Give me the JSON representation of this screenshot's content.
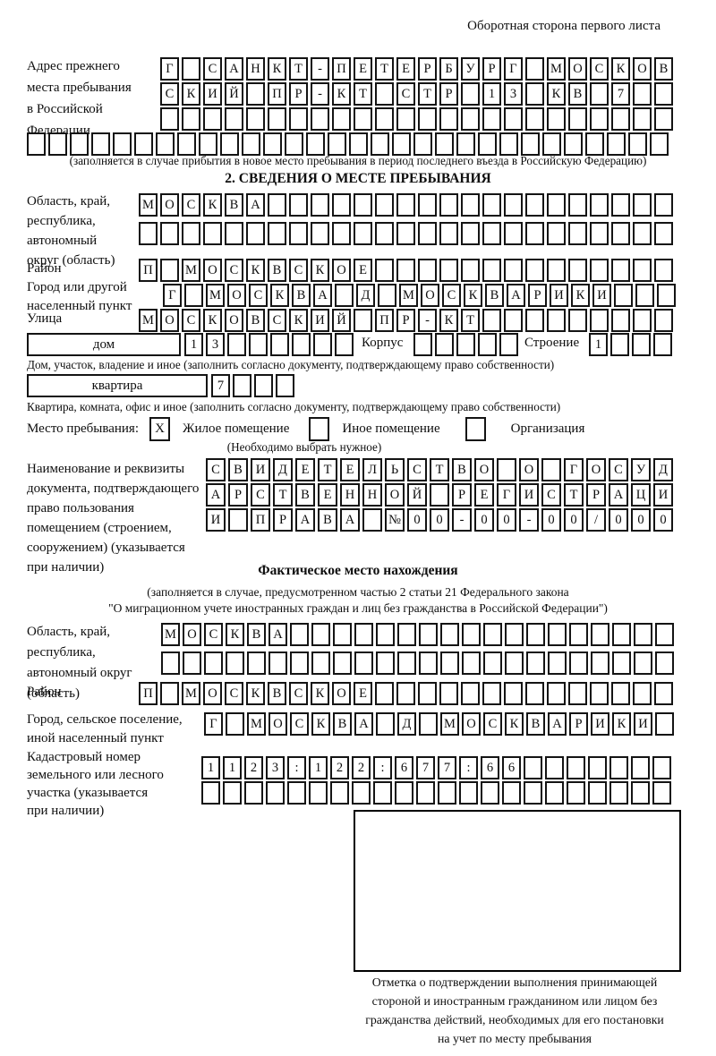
{
  "page": {
    "backside_note": "Оборотная сторона первого листа"
  },
  "prev_address": {
    "label": "Адрес прежнего\nместа пребывания\nв Российской\nФедерации",
    "rows": [
      {
        "chars": "Г САНКТ-ПЕТЕРБУРГ МОСКОВ",
        "boxes": 24
      },
      {
        "chars": "СКИЙ ПР-КТ СТР 13 КВ 7",
        "boxes": 24
      },
      {
        "chars": "",
        "boxes": 24
      },
      {
        "chars": "",
        "boxes": 30
      }
    ],
    "note": "(заполняется в случае прибытия в новое место пребывания в период последнего въезда в Российскую Федерацию)"
  },
  "section2": {
    "title": "2. СВЕДЕНИЯ О МЕСТЕ ПРЕБЫВАНИЯ",
    "oblast": {
      "label": "Область, край,\nреспублика,\nавтономный\nокруг (область)",
      "rows": [
        {
          "chars": "МОСКВА",
          "boxes": 25
        },
        {
          "chars": "",
          "boxes": 25
        }
      ]
    },
    "raion": {
      "label": "Район",
      "row": {
        "chars": "П МОСКВСКОЕ",
        "boxes": 25
      }
    },
    "gorod": {
      "label": "Город или другой\nнаселенный пункт",
      "row": {
        "chars": "Г МОСКВА Д МОСКВАРИКИ",
        "boxes": 24
      }
    },
    "ulitsa": {
      "label": "Улица",
      "row": {
        "chars": "МОСКОВСКИЙ ПР-КТ",
        "boxes": 25
      }
    },
    "dom": {
      "box_label": "дом",
      "row": {
        "chars": "13",
        "boxes": 8
      },
      "korpus_label": "Корпус",
      "korpus_row": {
        "chars": "",
        "boxes": 5
      },
      "stroenie_label": "Строение",
      "stroenie_row": {
        "chars": "1",
        "boxes": 4
      },
      "caption": "Дом, участок, владение и иное (заполнить согласно документу, подтверждающему право собственности)"
    },
    "kvartira": {
      "box_label": "квартира",
      "row": {
        "chars": "7",
        "boxes": 4
      },
      "caption": "Квартира, комната, офис и иное (заполнить согласно документу, подтверждающему право собственности)"
    },
    "mesto": {
      "label": "Место пребывания:",
      "options": [
        {
          "label": "Жилое помещение",
          "mark": "X"
        },
        {
          "label": "Иное помещение",
          "mark": ""
        },
        {
          "label": "Организация",
          "mark": ""
        }
      ],
      "note": "(Необходимо выбрать нужное)"
    },
    "document": {
      "label": "Наименование и реквизиты\nдокумента, подтверждающего\nправо пользования\nпомещением (строением,\nсооружением) (указывается\nпри наличии)",
      "rows": [
        {
          "chars": "СВИДЕТЕЛЬСТВО О ГОСУД",
          "boxes": 21
        },
        {
          "chars": "АРСТВЕННОЙ РЕГИСТРАЦИ",
          "boxes": 21
        },
        {
          "chars": "И ПРАВА №00-00-00/000",
          "boxes": 21
        }
      ]
    }
  },
  "fact": {
    "title": "Фактическое место нахождения",
    "note_line1": "(заполняется в случае, предусмотренном частью 2 статьи 21 Федерального закона",
    "note_line2": "\"О миграционном учете иностранных граждан и лиц без гражданства в Российской Федерации\")",
    "oblast": {
      "label": "Область, край,\nреспублика,\nавтономный округ\n(область)",
      "rows": [
        {
          "chars": "МОСКВА",
          "boxes": 24
        },
        {
          "chars": "",
          "boxes": 24
        }
      ]
    },
    "raion": {
      "label": "Район",
      "row": {
        "chars": "П МОСКВСКОЕ",
        "boxes": 25
      }
    },
    "gorod": {
      "label": "Город, сельское поселение,\nиной населенный пункт",
      "row": {
        "chars": "Г МОСКВА Д МОСКВАРИКИ",
        "boxes": 22
      }
    },
    "kadastr": {
      "label": "Кадастровый номер\nземельного или лесного\nучастка (указывается\nпри наличии)",
      "rows": [
        {
          "chars": "1123:122:677:66",
          "boxes": 22
        },
        {
          "chars": "",
          "boxes": 22
        }
      ]
    }
  },
  "stamp": {
    "caption": "Отметка о подтверждении выполнения принимающей\nстороной и иностранным гражданином или лицом без\nгражданства действий, необходимых для его постановки\nна учет по месту пребывания"
  }
}
